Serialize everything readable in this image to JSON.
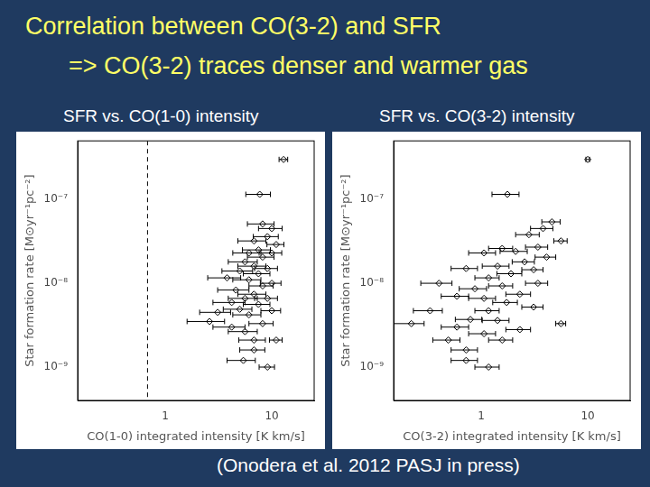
{
  "header": {
    "title": "Correlation between CO(3-2) and SFR",
    "subtitle": "=> CO(3-2) traces denser and warmer gas"
  },
  "footer": "(Onodera et al.  2012 PASJ in press)",
  "chart_data": [
    {
      "type": "scatter",
      "title": "SFR vs. CO(1-0) intensity",
      "x_label": "CO(1-0) integrated intensity [K km/s]",
      "y_label": "Star formation rate [M⊙yr⁻¹pc⁻²]",
      "x": [
        12.9,
        7.7,
        8.2,
        10,
        9.1,
        6.8,
        11,
        7.5,
        6.1,
        10,
        8.2,
        5.6,
        6.8,
        9.1,
        5.0,
        7.5,
        3.8,
        6.1,
        10,
        8.2,
        4.6,
        6.8,
        5.6,
        9.1,
        4.2,
        7.5,
        5.0,
        10,
        3.1,
        6.1,
        2.6,
        8.2,
        4.2,
        5.6,
        6.8,
        11,
        6.8,
        5.4,
        9.1
      ],
      "values": [
        3e-07,
        1.15e-07,
        5.1e-08,
        4.5e-08,
        3.6e-08,
        3.2e-08,
        2.9e-08,
        2.5e-08,
        2.3e-08,
        2.3e-08,
        2.05e-08,
        1.8e-08,
        1.6e-08,
        1.5e-08,
        1.4e-08,
        1.3e-08,
        1.16e-08,
        1.1e-08,
        1e-08,
        9.3e-09,
        8.3e-09,
        7.4e-09,
        6.6e-09,
        6.6e-09,
        5.9e-09,
        5.6e-09,
        4.9e-09,
        4.7e-09,
        4.5e-09,
        4.2e-09,
        3.5e-09,
        3.3e-09,
        3e-09,
        2.65e-09,
        2.1e-09,
        2.1e-09,
        1.6e-09,
        1.2e-09,
        1e-09
      ],
      "x_err": [
        1.2,
        2.0,
        2.3,
        2.5,
        2.4,
        2.0,
        2.0,
        2.2,
        1.8,
        2.4,
        2.3,
        1.7,
        2.0,
        2.2,
        1.6,
        2.1,
        1.3,
        1.8,
        2.2,
        2.1,
        1.5,
        2.0,
        1.7,
        2.2,
        1.4,
        2.1,
        1.5,
        2.1,
        1.0,
        1.8,
        1.0,
        2.1,
        1.4,
        1.7,
        1.9,
        1.5,
        1.8,
        1.6,
        1.5
      ],
      "vlines": [
        0.68
      ],
      "xlim": [
        0.15,
        25
      ],
      "ylim": [
        4e-10,
        5e-07
      ],
      "xticks": [
        1,
        10
      ],
      "yticks": [
        {
          "value": 1e-09,
          "label": "10⁻⁹"
        },
        {
          "value": 1e-08,
          "label": "10⁻⁸"
        },
        {
          "value": 1e-07,
          "label": "10⁻⁷"
        }
      ],
      "log": true,
      "grid": false,
      "color": "#000000",
      "marker": "diamond"
    },
    {
      "type": "scatter",
      "title": "SFR vs. CO(3-2) intensity",
      "x_label": "CO(3-2) integrated intensity [K km/s]",
      "y_label": "Star formation rate [M⊙yr⁻¹pc⁻²]",
      "x": [
        10,
        1.76,
        4.6,
        3.8,
        2.8,
        5.6,
        1.57,
        3.4,
        2.1,
        1.06,
        4.1,
        2.55,
        1.42,
        0.72,
        3.1,
        1.9,
        1.17,
        0.4,
        3.4,
        1.57,
        0.87,
        2.3,
        1.06,
        0.59,
        1.73,
        3.1,
        0.33,
        1.17,
        0.79,
        1.42,
        5.6,
        0.22,
        0.59,
        2.3,
        1.06,
        0.49,
        1.57,
        0.72,
        0.72,
        1.17
      ],
      "values": [
        3e-07,
        1.15e-07,
        5.4e-08,
        4.5e-08,
        3.8e-08,
        3.2e-08,
        2.6e-08,
        2.7e-08,
        2.4e-08,
        2.3e-08,
        2.05e-08,
        1.8e-08,
        1.6e-08,
        1.5e-08,
        1.45e-08,
        1.3e-08,
        1.16e-08,
        1e-08,
        1e-08,
        9.3e-09,
        8.6e-09,
        7.4e-09,
        6.6e-09,
        7e-09,
        5.9e-09,
        5.2e-09,
        4.7e-09,
        4.7e-09,
        3.7e-09,
        3.6e-09,
        3.3e-09,
        3.3e-09,
        3e-09,
        2.8e-09,
        2.5e-09,
        2.1e-09,
        2.1e-09,
        1.6e-09,
        1.2e-09,
        1e-09
      ],
      "x_err": [
        0.4,
        0.5,
        0.9,
        0.9,
        0.7,
        0.8,
        0.4,
        0.8,
        0.6,
        0.3,
        0.9,
        0.6,
        0.4,
        0.2,
        0.7,
        0.5,
        0.3,
        0.13,
        0.8,
        0.4,
        0.25,
        0.6,
        0.3,
        0.17,
        0.45,
        0.7,
        0.1,
        0.3,
        0.22,
        0.4,
        0.6,
        0.07,
        0.17,
        0.6,
        0.3,
        0.14,
        0.4,
        0.2,
        0.2,
        0.3
      ],
      "xlim": [
        0.15,
        25
      ],
      "ylim": [
        4e-10,
        5e-07
      ],
      "xticks": [
        1,
        10
      ],
      "yticks": [
        {
          "value": 1e-09,
          "label": "10⁻⁹"
        },
        {
          "value": 1e-08,
          "label": "10⁻⁸"
        },
        {
          "value": 1e-07,
          "label": "10⁻⁷"
        }
      ],
      "log": true,
      "grid": false,
      "color": "#000000",
      "marker": "diamond"
    }
  ]
}
